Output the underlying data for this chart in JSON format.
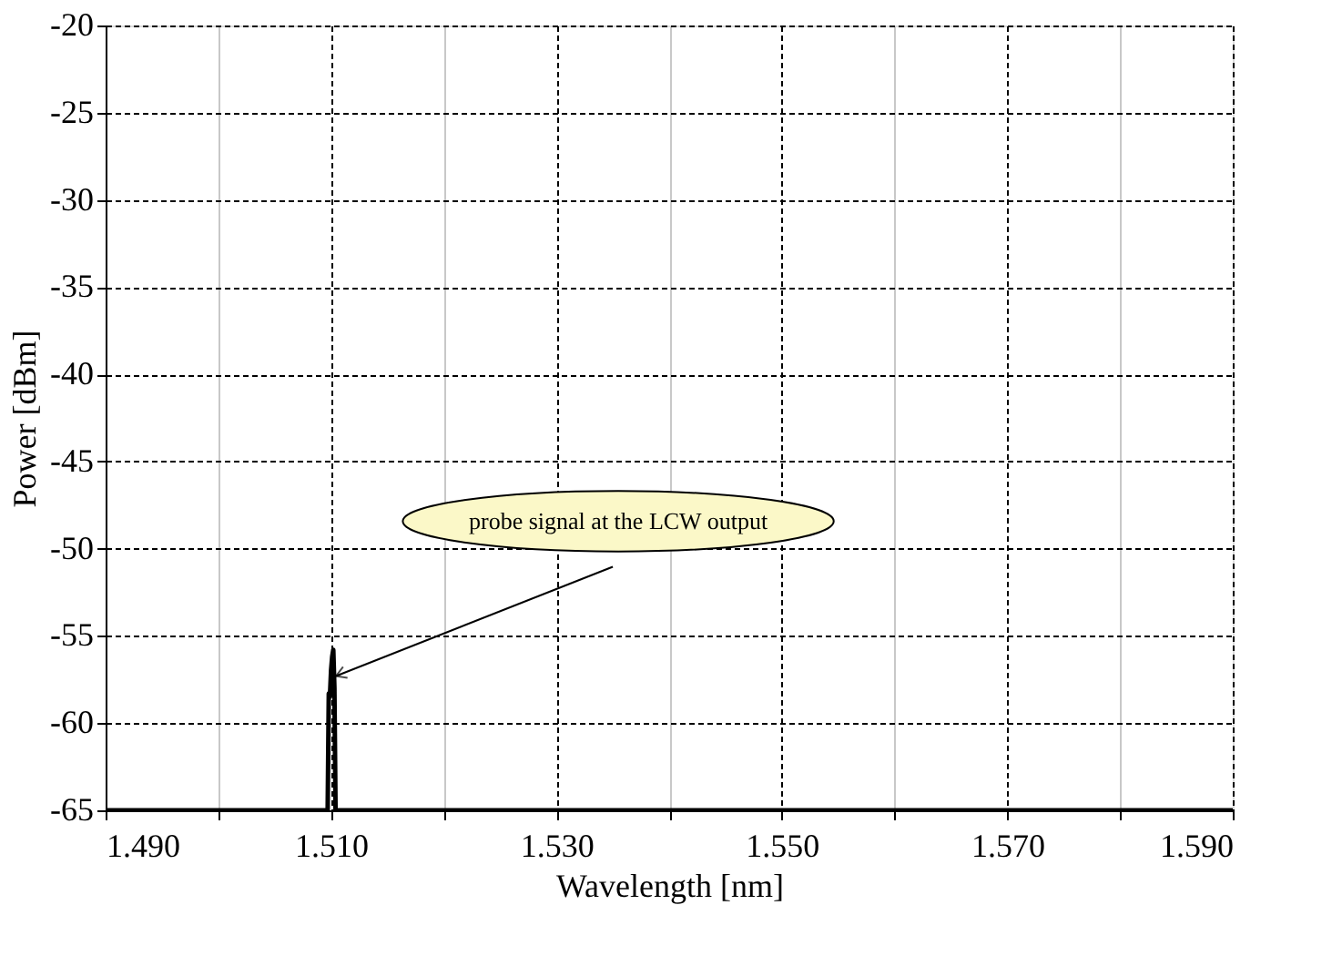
{
  "chart_data": {
    "type": "line",
    "xlabel": "Wavelength [nm]",
    "ylabel": "Power [dBm]",
    "x": [
      1.49,
      1.5097,
      1.5098,
      1.5099,
      1.51,
      1.5101,
      1.5102,
      1.5103,
      1.5104,
      1.59
    ],
    "series": [
      {
        "color": "#000000",
        "values": [
          -65,
          -65,
          -58.3,
          -58.5,
          -57,
          -56.2,
          -55.8,
          -58,
          -65,
          -65
        ]
      }
    ],
    "xlim": [
      1.49,
      1.59
    ],
    "xticks": [
      {
        "value": 1.49,
        "label": "1.490"
      },
      {
        "value": 1.5,
        "label": null
      },
      {
        "value": 1.51,
        "label": "1.510"
      },
      {
        "value": 1.52,
        "label": null
      },
      {
        "value": 1.53,
        "label": "1.530"
      },
      {
        "value": 1.54,
        "label": null
      },
      {
        "value": 1.55,
        "label": "1.550"
      },
      {
        "value": 1.56,
        "label": null
      },
      {
        "value": 1.57,
        "label": "1.570"
      },
      {
        "value": 1.58,
        "label": null
      },
      {
        "value": 1.59,
        "label": "1.590"
      }
    ],
    "ylim": [
      -65,
      -20
    ],
    "yticks": [
      -65,
      -60,
      -55,
      -50,
      -45,
      -40,
      -35,
      -30,
      -25,
      -20
    ],
    "grid": true,
    "line_style": "solid",
    "marker": "none",
    "annotations": [
      "probe signal at the LCW output"
    ]
  }
}
